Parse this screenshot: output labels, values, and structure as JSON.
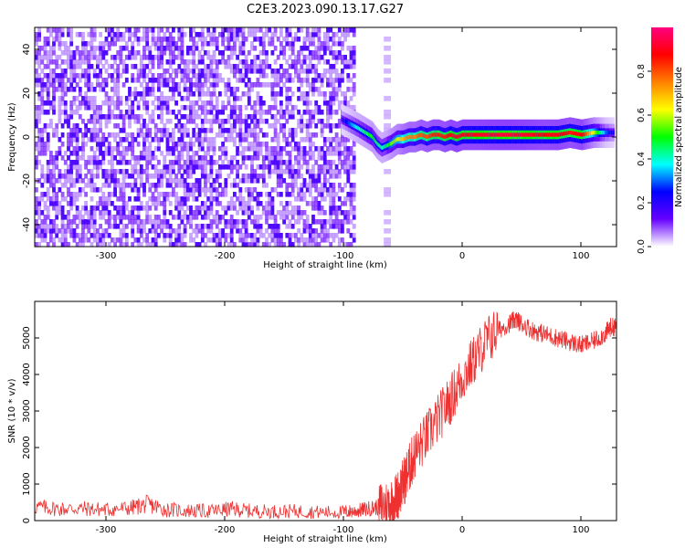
{
  "figure": {
    "title": "C2E3.2023.090.13.17.G27"
  },
  "chart_data": [
    {
      "type": "heatmap",
      "title": "C2E3.2023.090.13.17.G27",
      "xlabel": "Height of straight line (km)",
      "ylabel": "Frequency (Hz)",
      "xlim": [
        -360,
        130
      ],
      "ylim": [
        -50,
        50
      ],
      "xticks": [
        -300,
        -200,
        -100,
        0,
        100
      ],
      "yticks": [
        -40,
        -20,
        0,
        20,
        40
      ],
      "colorbar": {
        "label": "Normalized spectral amplitude",
        "range": [
          0.0,
          1.0
        ],
        "ticks": [
          0.0,
          0.2,
          0.4,
          0.6,
          0.8
        ],
        "colormap": [
          "#ffffff",
          "#6600ff",
          "#0000ff",
          "#00ffff",
          "#00ff00",
          "#ffff00",
          "#ff8000",
          "#ff0000",
          "#ff0080"
        ]
      },
      "noise_region": {
        "x_range": [
          -360,
          -90
        ],
        "y_range": [
          -50,
          50
        ],
        "amplitude": 0.15
      },
      "noise_band": {
        "x_range": [
          -66,
          -60
        ],
        "y_range": [
          -50,
          50
        ]
      },
      "ridge": {
        "x": [
          -102,
          -95,
          -88,
          -82,
          -76,
          -72,
          -68,
          -64,
          -60,
          -55,
          -50,
          -45,
          -40,
          -35,
          -30,
          -25,
          -20,
          -15,
          -10,
          -5,
          0,
          10,
          20,
          30,
          40,
          50,
          60,
          70,
          80,
          90,
          100,
          110,
          120,
          128
        ],
        "y": [
          8,
          6,
          4,
          2,
          0,
          -3,
          -5,
          -4,
          -3,
          -1,
          -1,
          0,
          0,
          1,
          0,
          1,
          1,
          0,
          1,
          0,
          1,
          1,
          1,
          1,
          1,
          1,
          1,
          1,
          1,
          2,
          1,
          2,
          2,
          2
        ],
        "amplitude": [
          0.2,
          0.3,
          0.4,
          0.45,
          0.5,
          0.45,
          0.4,
          0.45,
          0.55,
          0.6,
          0.7,
          0.75,
          0.75,
          0.8,
          0.8,
          0.85,
          0.85,
          0.85,
          0.9,
          0.9,
          0.9,
          0.9,
          0.92,
          0.93,
          0.93,
          0.92,
          0.9,
          0.88,
          0.9,
          0.85,
          0.9,
          0.6,
          0.3,
          0.2
        ]
      }
    },
    {
      "type": "line",
      "xlabel": "Height of straight line (km)",
      "ylabel": "SNR (10 * v/v)",
      "xlim": [
        -360,
        130
      ],
      "ylim": [
        0,
        6000
      ],
      "xticks": [
        -300,
        -200,
        -100,
        0,
        100
      ],
      "yticks": [
        0,
        1000,
        2000,
        3000,
        4000,
        5000
      ],
      "color": "#ee3030",
      "series": [
        {
          "x": [
            -360,
            -340,
            -320,
            -300,
            -280,
            -265,
            -250,
            -230,
            -210,
            -195,
            -180,
            -160,
            -140,
            -120,
            -100,
            -90,
            -80,
            -70,
            -62,
            -55,
            -50,
            -45,
            -40,
            -30,
            -20,
            -10,
            0,
            10,
            20,
            30,
            40,
            45,
            50,
            60,
            70,
            80,
            90,
            100,
            110,
            120,
            125,
            130
          ],
          "y": [
            380,
            320,
            330,
            300,
            340,
            450,
            300,
            270,
            260,
            320,
            270,
            250,
            260,
            230,
            230,
            260,
            320,
            380,
            450,
            650,
            1000,
            1400,
            1800,
            2300,
            2800,
            3300,
            3900,
            4400,
            4900,
            5200,
            5400,
            5500,
            5400,
            5200,
            5100,
            5000,
            4900,
            4800,
            4900,
            5100,
            5300,
            5300
          ]
        }
      ]
    }
  ]
}
